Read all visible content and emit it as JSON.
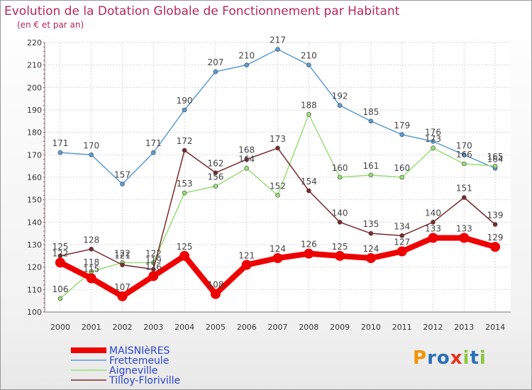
{
  "chart_data": {
    "type": "line",
    "title": "Evolution de la Dotation Globale de Fonctionnement par Habitant",
    "subtitle": "(en € et par an)",
    "xlabel": "",
    "ylabel": "",
    "x": [
      "2000",
      "2001",
      "2002",
      "2003",
      "2004",
      "2005",
      "2006",
      "2007",
      "2008",
      "2009",
      "2010",
      "2011",
      "2012",
      "2013",
      "2014"
    ],
    "ylim": [
      100,
      220
    ],
    "yticks": [
      100,
      110,
      120,
      130,
      140,
      150,
      160,
      170,
      180,
      190,
      200,
      210,
      220
    ],
    "grid": true,
    "legend_position": "bottom-left",
    "series": [
      {
        "name": "MAISNIèRES",
        "color": "#ee0000",
        "values": [
          122,
          115,
          107,
          116,
          125,
          108,
          121,
          124,
          126,
          125,
          124,
          127,
          133,
          133,
          129
        ],
        "labels": [
          "122",
          "115",
          "107",
          "116",
          "125",
          "108",
          "121",
          "124",
          "126",
          "125",
          "124",
          "127",
          "133",
          "133",
          "129"
        ]
      },
      {
        "name": "Frettemeule",
        "color": "#5b9bd5",
        "values": [
          171,
          170,
          157,
          171,
          190,
          207,
          210,
          217,
          210,
          192,
          185,
          179,
          176,
          170,
          164
        ],
        "labels": [
          "171",
          "170",
          "157",
          "171",
          "190",
          "207",
          "210",
          "217",
          "210",
          "192",
          "185",
          "179",
          "176",
          "170",
          "164"
        ]
      },
      {
        "name": "Aigneville",
        "color": "#99dd77",
        "values": [
          106,
          118,
          122,
          122,
          153,
          156,
          164,
          152,
          188,
          160,
          161,
          160,
          173,
          166,
          165
        ],
        "labels": [
          "106",
          "118",
          "122",
          "122",
          "153",
          "156",
          "164",
          "152",
          "188",
          "160",
          "161",
          "160",
          "173",
          "166",
          "165"
        ]
      },
      {
        "name": "Tilloy-Floriville",
        "color": "#7b2a2a",
        "values": [
          125,
          128,
          121,
          119,
          172,
          162,
          168,
          173,
          154,
          140,
          135,
          134,
          140,
          151,
          139
        ],
        "labels": [
          "125",
          "128",
          "121",
          "119",
          "172",
          "162",
          "168",
          "173",
          "154",
          "140",
          "135",
          "134",
          "140",
          "151",
          "139"
        ]
      }
    ]
  },
  "logo": {
    "letters": [
      "P",
      "r",
      "o",
      "x",
      "i",
      "t",
      "i"
    ],
    "colors": [
      "#f29400",
      "#2a6fb5",
      "#2a6fb5",
      "#e5321a",
      "#8cc63f",
      "#2a6fb5",
      "#8cc63f"
    ]
  }
}
